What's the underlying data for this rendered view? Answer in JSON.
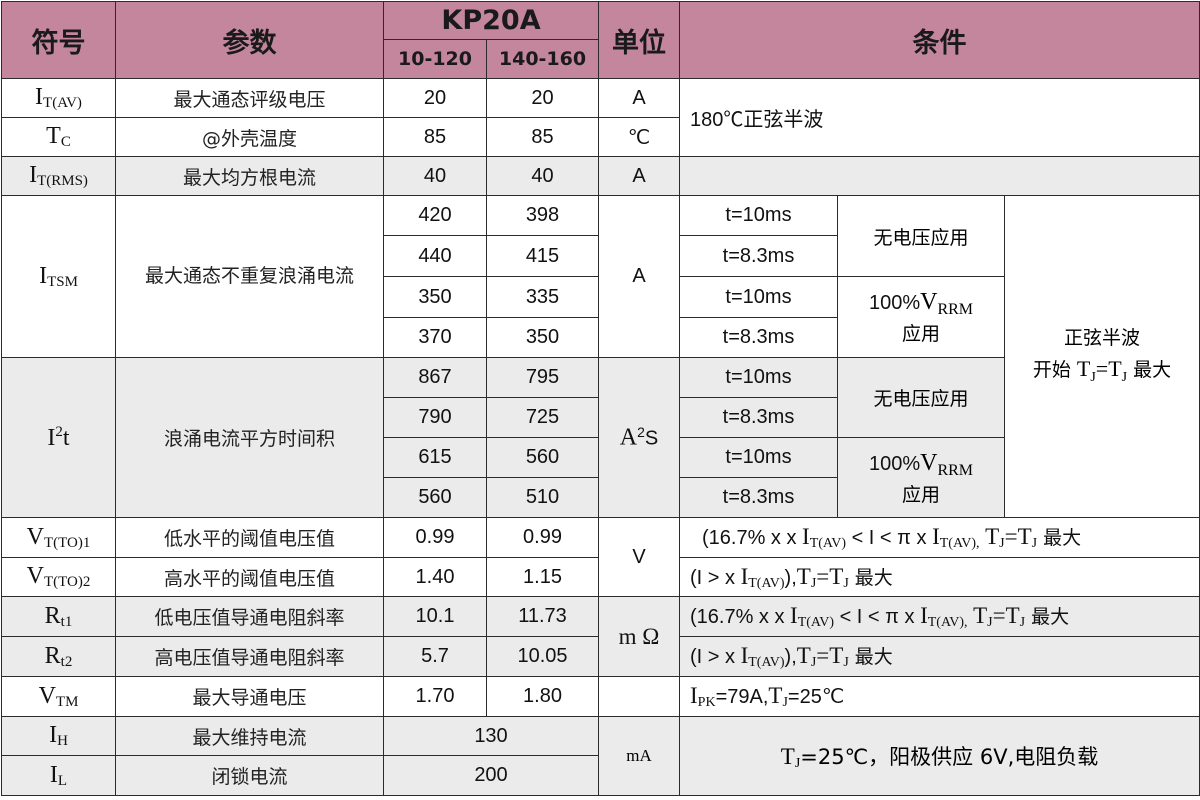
{
  "header": {
    "symbol": "符号",
    "parameter": "参数",
    "model": "KP20A",
    "range1": "10-120",
    "range2": "140-160",
    "unit": "单位",
    "conditions": "条件"
  },
  "rows": {
    "itav": {
      "sym": "I",
      "sub": "T(AV)",
      "param": "最大通态评级电压",
      "v1": "20",
      "v2": "20",
      "unit": "A"
    },
    "tc": {
      "sym": "T",
      "sub": "C",
      "param": "@外壳温度",
      "v1": "85",
      "v2": "85",
      "unit": "℃"
    },
    "itav_tc_cond": "180℃正弦半波",
    "itrms": {
      "sym": "I",
      "sub": "T(RMS)",
      "param": "最大均方根电流",
      "v1": "40",
      "v2": "40",
      "unit": "A"
    },
    "itsm": {
      "sym": "I",
      "sub": "TSM",
      "param": "最大通态不重复浪涌电流",
      "unit": "A",
      "values": [
        [
          "420",
          "398"
        ],
        [
          "440",
          "415"
        ],
        [
          "350",
          "335"
        ],
        [
          "370",
          "350"
        ]
      ]
    },
    "i2t": {
      "sym": "I",
      "sup": "2",
      "sym2": "t",
      "param": "浪涌电流平方时间积",
      "unit_a": "A",
      "unit_sup": "2",
      "unit_s": "S",
      "values": [
        [
          "867",
          "795"
        ],
        [
          "790",
          "725"
        ],
        [
          "615",
          "560"
        ],
        [
          "560",
          "510"
        ]
      ]
    },
    "times": [
      "t=10ms",
      "t=8.3ms"
    ],
    "no_voltage": "无电压应用",
    "vrrm_pre": "100%",
    "vrrm_v": "V",
    "vrrm_sub": "RRM",
    "vrrm_post": "应用",
    "sine_cond_1": "正弦半波",
    "sine_cond_2_pre": "开始 ",
    "sine_cond_2_t1": "T",
    "sine_cond_2_sub1": "J",
    "sine_cond_2_eq": "=T",
    "sine_cond_2_sub2": "J",
    "sine_cond_2_post": " 最大",
    "vto1": {
      "sym": "V",
      "sub": "T(TO)1",
      "param": "低水平的阈值电压值",
      "v1": "0.99",
      "v2": "0.99"
    },
    "vto2": {
      "sym": "V",
      "sub": "T(TO)2",
      "param": "高水平的阈值电压值",
      "v1": "1.40",
      "v2": "1.15"
    },
    "v_unit": "V",
    "rt1": {
      "sym": "R",
      "sub": "t1",
      "param": "低电压值导通电阻斜率",
      "v1": "10.1",
      "v2": "11.73"
    },
    "rt2": {
      "sym": "R",
      "sub": "t2",
      "param": "高电压值导通电阻斜率",
      "v1": "5.7",
      "v2": "10.05"
    },
    "r_unit": "m Ω",
    "cond_low": {
      "a": "(16.7% x    x ",
      "i1": "I",
      "s1": "T(AV)",
      "b": " < I < π x ",
      "i2": "I",
      "s2": "T(AV),",
      "c": " ",
      "t": "T",
      "s3": "J",
      "d": "=T",
      "s4": "J",
      "e": "  最大"
    },
    "cond_high": {
      "a": "(I >    x ",
      "i1": "I",
      "s1": "T(AV)",
      "b": "),",
      "t": "T",
      "s2": "J",
      "c": "=T",
      "s3": "J",
      "d": "  最大"
    },
    "vtm": {
      "sym": "V",
      "sub": "TM",
      "param": "最大导通电压",
      "v1": "1.70",
      "v2": "1.80"
    },
    "vtm_cond": {
      "i": "I",
      "s1": "PK",
      "a": "=79A,",
      "t": "T",
      "s2": "J",
      "b": "=25℃"
    },
    "ih": {
      "sym": "I",
      "sub": "H",
      "param": "最大维持电流",
      "v": "130"
    },
    "il": {
      "sym": "I",
      "sub": "L",
      "param": "闭锁电流",
      "v": "200"
    },
    "ma_unit": "mA",
    "last_cond": {
      "t": "T",
      "s": "J",
      "a": "=25℃，阳极供应 6V,电阻负载"
    }
  }
}
